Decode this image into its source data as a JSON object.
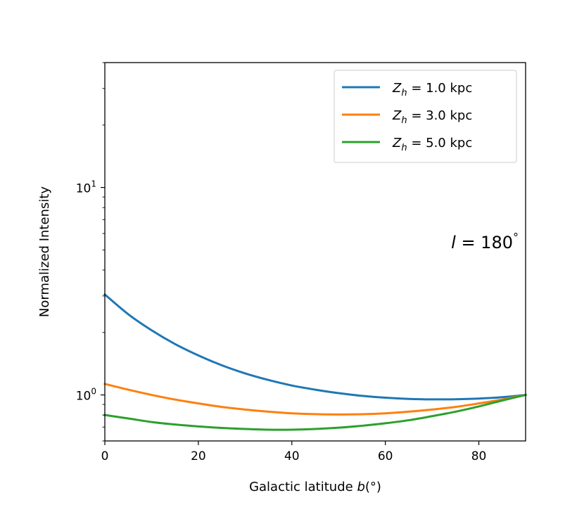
{
  "chart_data": {
    "type": "line",
    "xlabel": "Galactic latitude b(°)",
    "ylabel": "Normalized Intensity",
    "xlim": [
      0,
      90
    ],
    "ylim": [
      0.6,
      40
    ],
    "yscale": "log",
    "x_ticks": [
      0,
      20,
      40,
      60,
      80
    ],
    "x_tick_labels": [
      "0",
      "20",
      "40",
      "60",
      "80"
    ],
    "y_major_ticks": [
      1,
      10
    ],
    "y_tick_labels": [
      {
        "base": "10",
        "exp": "0"
      },
      {
        "base": "10",
        "exp": "1"
      }
    ],
    "annotation": "l = 180°",
    "legend_placement": "top-right",
    "grid": false,
    "series": [
      {
        "name": "Z_h = 1.0 kpc",
        "legend": {
          "sym": "Z",
          "sub": "h",
          "rest": " = 1.0 kpc"
        },
        "color": "#1f77b4",
        "x": [
          0,
          5,
          10,
          15,
          20,
          25,
          30,
          35,
          40,
          45,
          50,
          55,
          60,
          65,
          70,
          75,
          80,
          85,
          90
        ],
        "y": [
          3.05,
          2.45,
          2.05,
          1.76,
          1.55,
          1.39,
          1.27,
          1.18,
          1.11,
          1.06,
          1.02,
          0.99,
          0.97,
          0.957,
          0.952,
          0.953,
          0.96,
          0.975,
          1.0
        ]
      },
      {
        "name": "Z_h = 3.0 kpc",
        "legend": {
          "sym": "Z",
          "sub": "h",
          "rest": " = 3.0 kpc"
        },
        "color": "#ff7f0e",
        "x": [
          0,
          5,
          10,
          15,
          20,
          25,
          30,
          35,
          40,
          45,
          50,
          55,
          60,
          65,
          70,
          75,
          80,
          85,
          90
        ],
        "y": [
          1.13,
          1.06,
          1.0,
          0.95,
          0.91,
          0.875,
          0.85,
          0.83,
          0.815,
          0.808,
          0.805,
          0.807,
          0.815,
          0.83,
          0.85,
          0.875,
          0.91,
          0.95,
          1.0
        ]
      },
      {
        "name": "Z_h = 5.0 kpc",
        "legend": {
          "sym": "Z",
          "sub": "h",
          "rest": " = 5.0 kpc"
        },
        "color": "#2ca02c",
        "x": [
          0,
          5,
          10,
          15,
          20,
          25,
          30,
          35,
          40,
          45,
          50,
          55,
          60,
          65,
          70,
          75,
          80,
          85,
          90
        ],
        "y": [
          0.8,
          0.77,
          0.74,
          0.72,
          0.705,
          0.693,
          0.685,
          0.68,
          0.68,
          0.685,
          0.695,
          0.71,
          0.73,
          0.755,
          0.79,
          0.83,
          0.88,
          0.94,
          1.0
        ]
      }
    ]
  }
}
